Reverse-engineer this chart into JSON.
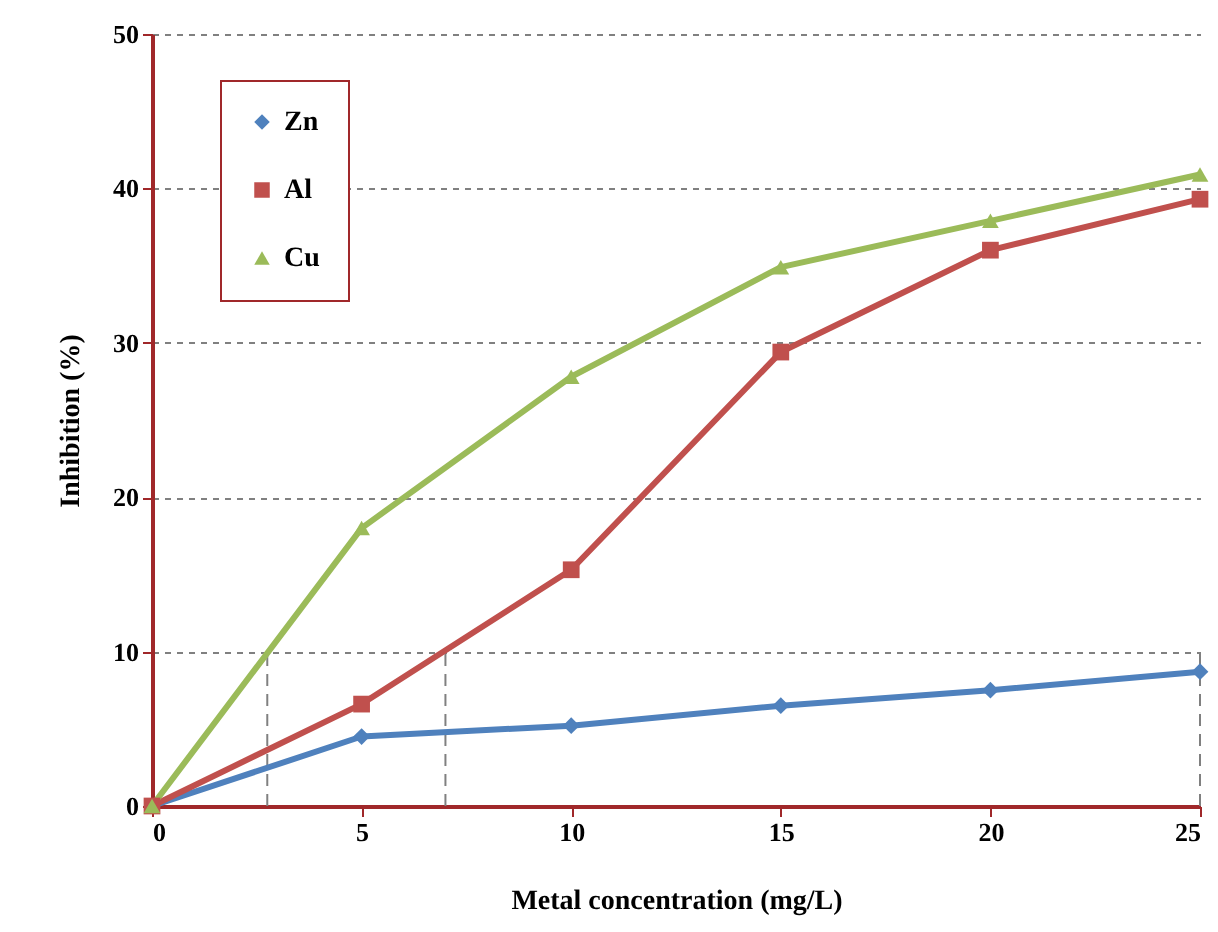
{
  "chart_data": {
    "type": "line",
    "xlabel": "Metal concentration (mg/L)",
    "ylabel": "Inhibition (%)",
    "x": [
      0,
      5,
      10,
      15,
      20,
      25
    ],
    "series": [
      {
        "name": "Zn",
        "color": "#4f81bd",
        "marker": "diamond",
        "values": [
          0,
          4.5,
          5.2,
          6.5,
          7.5,
          8.7
        ]
      },
      {
        "name": "Al",
        "color": "#c0504d",
        "marker": "square",
        "values": [
          0,
          6.6,
          15.3,
          29.4,
          36,
          39.3
        ]
      },
      {
        "name": "Cu",
        "color": "#9bbb59",
        "marker": "triangle",
        "values": [
          0,
          18,
          27.8,
          34.9,
          37.9,
          40.9
        ]
      }
    ],
    "xlim": [
      0,
      25
    ],
    "xticks": [
      0,
      5,
      10,
      15,
      20,
      25
    ],
    "ylim": [
      0,
      50
    ],
    "yticks": [
      0,
      10,
      20,
      30,
      40,
      50
    ],
    "grid": "y",
    "legend": "top left",
    "line_style": "solid",
    "ref_lines": [
      {
        "axis": "x",
        "value": 2.75
      },
      {
        "axis": "x",
        "value": 7
      },
      {
        "axis": "x",
        "value": 25
      }
    ]
  }
}
